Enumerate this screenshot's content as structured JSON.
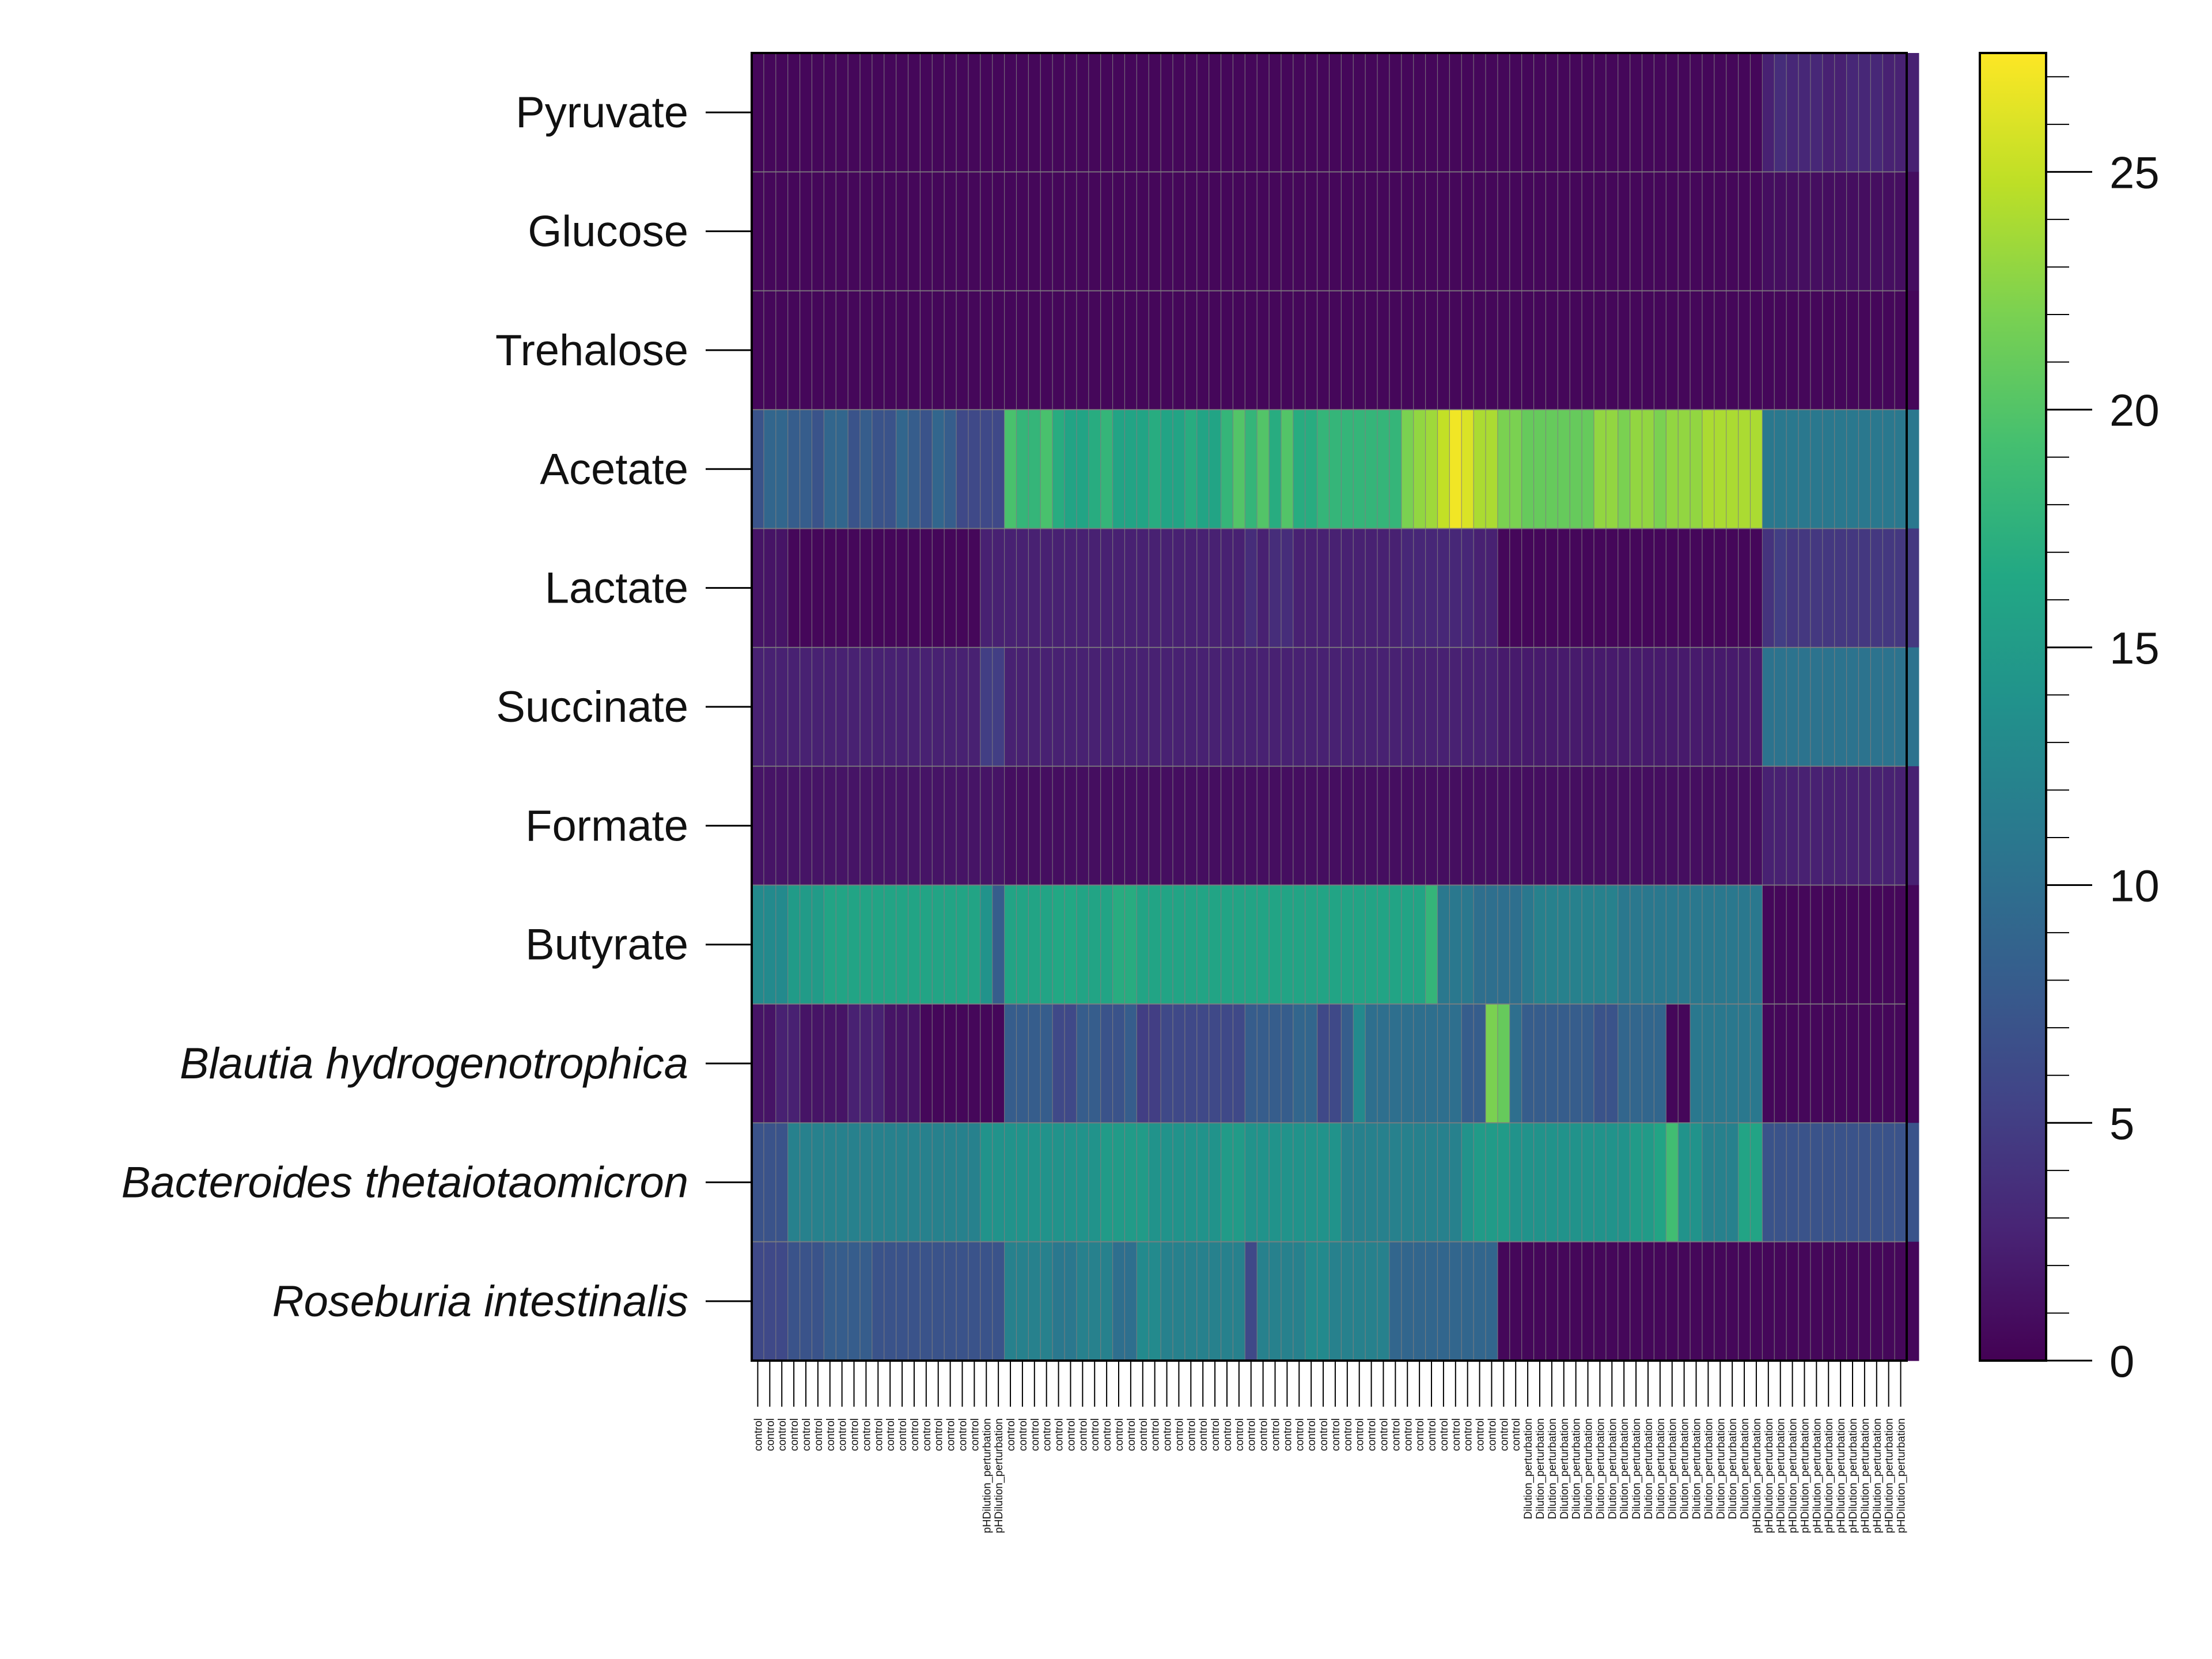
{
  "chart_data": {
    "type": "heatmap",
    "title": "",
    "xlabel": "",
    "ylabel": "",
    "colormap": "viridis",
    "grid": true,
    "grid_color": "#808080",
    "legend": "colorbar-right",
    "colorbar": {
      "range": [
        0,
        27.5
      ],
      "ticks": [
        0,
        5,
        10,
        15,
        20,
        25
      ],
      "tick_labels": [
        "0",
        "5",
        "10",
        "15",
        "20",
        "25"
      ]
    },
    "rows": [
      {
        "label": "Pyruvate",
        "italic": false
      },
      {
        "label": "Glucose",
        "italic": false
      },
      {
        "label": "Trehalose",
        "italic": false
      },
      {
        "label": "Acetate",
        "italic": false
      },
      {
        "label": "Lactate",
        "italic": false
      },
      {
        "label": "Succinate",
        "italic": false
      },
      {
        "label": "Formate",
        "italic": false
      },
      {
        "label": "Butyrate",
        "italic": false
      },
      {
        "label": "Blautia hydrogenotrophica",
        "italic": true
      },
      {
        "label": "Bacteroides thetaiotaomicron",
        "italic": true
      },
      {
        "label": "Roseburia intestinalis",
        "italic": true
      }
    ],
    "columns": [
      "control",
      "control",
      "control",
      "control",
      "control",
      "control",
      "control",
      "control",
      "control",
      "control",
      "control",
      "control",
      "control",
      "control",
      "control",
      "control",
      "control",
      "control",
      "control",
      "pHDilution_perturbation",
      "pHDilution_perturbation",
      "control",
      "control",
      "control",
      "control",
      "control",
      "control",
      "control",
      "control",
      "control",
      "control",
      "control",
      "control",
      "control",
      "control",
      "control",
      "control",
      "control",
      "control",
      "control",
      "control",
      "control",
      "control",
      "control",
      "control",
      "control",
      "control",
      "control",
      "control",
      "control",
      "control",
      "control",
      "control",
      "control",
      "control",
      "control",
      "control",
      "control",
      "control",
      "control",
      "control",
      "control",
      "control",
      "control",
      "Dilution_perturbation",
      "Dilution_perturbation",
      "Dilution_perturbation",
      "Dilution_perturbation",
      "Dilution_perturbation",
      "Dilution_perturbation",
      "Dilution_perturbation",
      "Dilution_perturbation",
      "Dilution_perturbation",
      "Dilution_perturbation",
      "Dilution_perturbation",
      "Dilution_perturbation",
      "Dilution_perturbation",
      "Dilution_perturbation",
      "Dilution_perturbation",
      "Dilution_perturbation",
      "Dilution_perturbation",
      "Dilution_perturbation",
      "Dilution_perturbation",
      "pHDilution_perturbation",
      "pHDilution_perturbation",
      "pHDilution_perturbation",
      "pHDilution_perturbation",
      "pHDilution_perturbation",
      "pHDilution_perturbation",
      "pHDilution_perturbation",
      "pHDilution_perturbation",
      "pHDilution_perturbation",
      "pHDilution_perturbation",
      "pHDilution_perturbation",
      "pHDilution_perturbation",
      "pHDilution_perturbation"
    ],
    "values": [
      [
        0.5,
        0.5,
        0.5,
        0.5,
        0.5,
        0.5,
        0.5,
        0.5,
        0.5,
        0.5,
        0.5,
        0.5,
        0.5,
        0.5,
        0.5,
        0.5,
        0.5,
        0.5,
        0.5,
        0.5,
        0.5,
        0.5,
        0.5,
        0.5,
        0.5,
        0.5,
        0.5,
        0.5,
        0.5,
        0.5,
        0.5,
        0.5,
        0.5,
        0.5,
        0.5,
        0.5,
        0.5,
        0.5,
        0.5,
        0.5,
        0.5,
        0.5,
        0.5,
        0.5,
        0.5,
        0.5,
        0.5,
        0.5,
        0.5,
        0.5,
        0.5,
        0.5,
        0.5,
        0.5,
        0.5,
        0.5,
        0.5,
        0.5,
        0.5,
        0.5,
        0.5,
        0.5,
        0.5,
        0.5,
        0.5,
        0.5,
        0.5,
        0.5,
        0.5,
        0.5,
        0.5,
        0.5,
        0.5,
        0.5,
        0.5,
        0.5,
        0.5,
        0.5,
        0.5,
        0.5,
        0.5,
        0.5,
        0.5,
        0.5,
        2.5,
        3.5,
        3.0,
        3.0,
        3.0,
        2.5,
        2.5,
        3.0,
        3.0,
        3.0,
        2.5,
        2.5,
        2.5
      ],
      [
        0.5,
        0.5,
        0.5,
        0.5,
        0.5,
        0.5,
        0.5,
        0.5,
        0.5,
        0.5,
        0.5,
        0.5,
        0.5,
        0.5,
        0.5,
        0.5,
        0.5,
        0.5,
        0.5,
        0.5,
        0.5,
        0.5,
        0.5,
        0.5,
        0.5,
        0.5,
        0.5,
        0.5,
        0.5,
        0.5,
        0.5,
        0.5,
        0.5,
        0.5,
        0.5,
        0.5,
        0.5,
        0.5,
        0.5,
        0.5,
        0.5,
        0.5,
        0.5,
        0.5,
        0.5,
        0.5,
        0.5,
        0.5,
        0.5,
        0.5,
        0.5,
        0.5,
        0.5,
        0.5,
        0.5,
        0.5,
        0.5,
        0.5,
        0.5,
        0.5,
        0.5,
        0.5,
        0.5,
        0.5,
        0.5,
        0.5,
        0.5,
        0.5,
        0.5,
        0.5,
        0.5,
        0.5,
        0.5,
        0.5,
        0.5,
        0.5,
        0.5,
        0.5,
        0.5,
        0.5,
        0.5,
        0.5,
        0.5,
        0.5,
        1.0,
        1.0,
        1.0,
        1.0,
        1.0,
        1.0,
        1.0,
        1.0,
        1.0,
        1.0,
        1.0,
        1.0,
        1.0
      ],
      [
        0.5,
        0.5,
        0.5,
        0.5,
        0.5,
        0.5,
        0.5,
        0.5,
        0.5,
        0.5,
        0.5,
        0.5,
        0.5,
        0.5,
        0.5,
        0.5,
        0.5,
        0.5,
        0.5,
        0.5,
        0.5,
        0.5,
        0.5,
        0.5,
        0.5,
        0.5,
        0.5,
        0.5,
        0.5,
        0.5,
        0.5,
        0.5,
        0.5,
        0.5,
        0.5,
        0.5,
        0.5,
        0.5,
        0.5,
        0.5,
        0.5,
        0.5,
        0.5,
        0.5,
        0.5,
        0.5,
        0.5,
        0.5,
        0.5,
        0.5,
        0.5,
        0.5,
        0.5,
        0.5,
        0.5,
        0.5,
        0.5,
        0.5,
        0.5,
        0.5,
        0.5,
        0.5,
        0.5,
        0.5,
        0.5,
        0.5,
        0.5,
        0.5,
        0.5,
        0.5,
        0.5,
        0.5,
        0.5,
        0.5,
        0.5,
        0.5,
        0.5,
        0.5,
        0.5,
        0.5,
        0.5,
        0.5,
        0.5,
        0.5,
        0.5,
        0.5,
        0.5,
        0.5,
        0.5,
        0.5,
        0.5,
        0.5,
        0.5,
        0.5,
        0.5,
        0.5,
        0.5
      ],
      [
        7.0,
        9.0,
        9.0,
        8.0,
        8.0,
        7.0,
        9.0,
        9.0,
        7.0,
        8.0,
        7.0,
        7.0,
        9.0,
        8.0,
        7.0,
        9.0,
        8.0,
        6.0,
        6.0,
        6.0,
        6.0,
        19.5,
        18.0,
        18.0,
        19.5,
        17.0,
        16.0,
        16.0,
        17.0,
        18.0,
        16.0,
        16.0,
        16.0,
        17.0,
        16.0,
        16.0,
        17.0,
        16.0,
        16.0,
        18.0,
        20.0,
        18.0,
        20.0,
        17.0,
        20.0,
        17.0,
        17.0,
        18.0,
        18.0,
        18.0,
        18.0,
        18.0,
        18.0,
        18.0,
        22.0,
        23.0,
        23.5,
        25.0,
        27.0,
        26.0,
        24.0,
        24.0,
        22.0,
        22.0,
        21.0,
        21.0,
        21.0,
        21.0,
        21.0,
        21.0,
        23.0,
        23.0,
        22.0,
        23.0,
        23.0,
        22.0,
        23.0,
        23.0,
        23.0,
        24.0,
        24.0,
        24.0,
        24.0,
        24.0,
        11.0,
        11.0,
        11.0,
        11.0,
        11.0,
        11.0,
        11.0,
        11.0,
        11.0,
        11.0,
        11.0,
        11.0,
        11.0
      ],
      [
        1.5,
        1.5,
        1.5,
        0.5,
        0.5,
        0.5,
        0.5,
        0.5,
        0.5,
        0.5,
        0.5,
        0.5,
        0.5,
        0.5,
        0.5,
        0.5,
        0.5,
        0.5,
        0.5,
        2.5,
        2.5,
        2.5,
        2.5,
        2.5,
        2.5,
        2.5,
        2.5,
        2.5,
        2.5,
        2.5,
        2.5,
        2.5,
        2.5,
        2.5,
        2.5,
        2.5,
        2.5,
        2.5,
        2.5,
        2.5,
        2.5,
        3.5,
        2.5,
        3.5,
        3.5,
        2.5,
        2.5,
        2.5,
        2.5,
        2.5,
        2.5,
        2.5,
        2.5,
        2.5,
        3.0,
        3.0,
        3.0,
        3.0,
        3.0,
        3.0,
        2.5,
        2.5,
        0.5,
        0.5,
        0.5,
        0.5,
        0.5,
        0.5,
        0.5,
        0.5,
        0.5,
        0.5,
        0.5,
        0.5,
        0.5,
        0.5,
        0.5,
        0.5,
        0.5,
        0.5,
        0.5,
        0.5,
        0.5,
        0.5,
        4.0,
        5.0,
        4.5,
        4.5,
        4.5,
        4.5,
        4.5,
        4.5,
        4.5,
        4.5,
        4.5,
        4.5,
        4.5
      ],
      [
        2.5,
        2.5,
        2.5,
        2.5,
        2.5,
        2.5,
        2.5,
        2.5,
        2.5,
        2.5,
        2.5,
        2.5,
        2.5,
        2.5,
        2.5,
        2.5,
        2.5,
        2.5,
        2.5,
        5.0,
        5.0,
        2.5,
        2.5,
        2.5,
        2.5,
        2.5,
        2.5,
        2.5,
        2.5,
        2.5,
        2.5,
        2.5,
        2.5,
        2.5,
        2.5,
        2.5,
        2.5,
        2.5,
        2.5,
        2.5,
        2.5,
        2.5,
        2.5,
        2.5,
        2.5,
        2.5,
        2.5,
        2.5,
        2.5,
        2.5,
        2.5,
        2.5,
        2.5,
        2.5,
        2.5,
        2.5,
        2.5,
        2.5,
        2.5,
        2.5,
        2.5,
        2.5,
        2.0,
        2.0,
        2.0,
        2.0,
        2.0,
        2.0,
        2.0,
        2.0,
        2.0,
        2.0,
        2.0,
        2.0,
        2.0,
        2.0,
        2.0,
        2.0,
        2.0,
        2.0,
        2.0,
        2.0,
        2.0,
        2.0,
        10.5,
        10.5,
        10.5,
        10.5,
        10.5,
        10.5,
        10.5,
        10.5,
        10.5,
        10.5,
        10.5,
        10.5,
        10.5
      ],
      [
        1.5,
        1.5,
        1.5,
        1.5,
        1.5,
        1.5,
        1.5,
        1.5,
        1.5,
        1.5,
        1.5,
        1.5,
        1.5,
        1.5,
        1.5,
        1.5,
        1.5,
        1.5,
        1.5,
        1.5,
        1.5,
        1.0,
        1.0,
        1.0,
        1.0,
        1.0,
        1.0,
        1.0,
        1.0,
        1.0,
        1.0,
        1.0,
        1.0,
        1.0,
        1.0,
        1.0,
        1.0,
        1.0,
        1.0,
        1.0,
        1.0,
        1.0,
        1.0,
        1.0,
        1.0,
        1.0,
        1.0,
        1.0,
        1.0,
        1.0,
        1.0,
        1.0,
        1.0,
        1.0,
        1.0,
        1.0,
        1.0,
        1.0,
        1.0,
        1.0,
        1.0,
        1.0,
        1.0,
        1.0,
        1.0,
        1.0,
        1.0,
        1.0,
        1.0,
        1.0,
        1.0,
        1.0,
        1.0,
        1.0,
        1.0,
        1.0,
        1.0,
        1.0,
        1.0,
        1.0,
        1.0,
        1.0,
        1.0,
        1.0,
        2.5,
        2.5,
        2.5,
        2.5,
        2.5,
        2.5,
        2.5,
        2.5,
        2.5,
        2.5,
        2.5,
        2.5,
        2.5
      ],
      [
        13.0,
        13.0,
        13.0,
        15.0,
        15.0,
        15.0,
        16.0,
        16.0,
        16.0,
        16.0,
        16.0,
        16.0,
        16.0,
        16.0,
        16.0,
        16.0,
        16.0,
        16.0,
        16.0,
        14.0,
        8.0,
        16.0,
        16.0,
        16.0,
        16.0,
        16.5,
        16.5,
        16.0,
        16.0,
        16.0,
        17.0,
        17.0,
        16.0,
        16.0,
        16.0,
        16.0,
        16.0,
        16.0,
        16.0,
        16.0,
        16.0,
        16.0,
        16.0,
        16.0,
        16.0,
        16.0,
        16.0,
        16.0,
        16.0,
        16.0,
        16.0,
        16.0,
        16.0,
        16.0,
        16.0,
        16.0,
        18.0,
        11.0,
        11.0,
        11.0,
        10.0,
        10.0,
        10.0,
        10.0,
        11.0,
        12.0,
        12.0,
        12.0,
        12.0,
        12.0,
        12.0,
        12.0,
        11.0,
        11.0,
        11.0,
        11.0,
        11.0,
        11.0,
        11.0,
        11.0,
        11.0,
        11.0,
        11.0,
        11.0,
        0.5,
        0.5,
        0.5,
        0.5,
        0.5,
        0.5,
        0.5,
        0.5,
        0.5,
        0.5,
        0.5,
        0.5,
        0.5
      ],
      [
        1.5,
        1.5,
        2.5,
        2.5,
        1.5,
        1.5,
        1.5,
        1.5,
        2.5,
        2.5,
        2.5,
        1.5,
        1.5,
        1.5,
        0.5,
        0.5,
        0.5,
        0.5,
        0.5,
        0.5,
        0.5,
        8.0,
        8.0,
        8.0,
        8.0,
        6.0,
        6.0,
        8.0,
        8.0,
        7.0,
        7.0,
        8.0,
        5.0,
        5.0,
        6.0,
        6.0,
        6.0,
        6.0,
        6.0,
        6.0,
        6.0,
        8.0,
        8.0,
        8.0,
        8.0,
        9.0,
        9.0,
        6.0,
        6.0,
        8.0,
        13.0,
        10.0,
        10.0,
        10.0,
        10.0,
        10.0,
        10.0,
        10.0,
        10.0,
        8.0,
        8.0,
        22.0,
        21.0,
        10.0,
        8.0,
        8.0,
        8.0,
        8.0,
        8.0,
        8.0,
        7.0,
        7.0,
        9.0,
        9.0,
        9.0,
        9.0,
        0.5,
        0.5,
        11.0,
        11.0,
        11.0,
        11.0,
        11.0,
        11.0,
        0.5,
        0.5,
        0.5,
        0.5,
        0.5,
        0.5,
        0.5,
        0.5,
        0.5,
        0.5,
        0.5,
        0.5,
        0.5
      ],
      [
        7.0,
        7.0,
        7.0,
        12.0,
        12.0,
        12.0,
        12.0,
        12.0,
        12.0,
        12.0,
        12.0,
        12.0,
        12.0,
        12.0,
        12.0,
        12.0,
        12.0,
        12.0,
        12.0,
        14.0,
        14.0,
        14.0,
        14.0,
        14.0,
        14.0,
        14.0,
        14.0,
        14.0,
        14.0,
        15.0,
        15.0,
        15.0,
        15.0,
        14.0,
        14.0,
        14.0,
        14.0,
        14.0,
        14.0,
        15.0,
        15.0,
        14.0,
        14.0,
        14.0,
        14.0,
        14.0,
        14.0,
        14.0,
        14.0,
        12.0,
        12.0,
        12.0,
        12.0,
        12.0,
        12.0,
        12.0,
        12.0,
        12.0,
        12.0,
        14.0,
        15.0,
        15.0,
        15.0,
        14.0,
        14.0,
        14.0,
        14.0,
        14.0,
        14.0,
        14.0,
        14.0,
        14.0,
        14.0,
        15.0,
        15.0,
        16.0,
        19.0,
        14.0,
        14.0,
        12.0,
        12.0,
        12.0,
        16.0,
        16.0,
        7.0,
        7.0,
        7.0,
        7.0,
        7.0,
        7.0,
        7.0,
        7.0,
        7.0,
        7.0,
        7.0,
        7.0,
        7.0
      ],
      [
        6.0,
        6.0,
        6.0,
        7.0,
        7.0,
        7.0,
        8.0,
        8.0,
        8.0,
        8.0,
        7.0,
        7.0,
        7.0,
        7.0,
        7.0,
        7.0,
        7.0,
        7.0,
        7.0,
        7.0,
        7.0,
        12.0,
        12.0,
        12.0,
        12.0,
        11.0,
        11.0,
        12.0,
        12.0,
        12.0,
        10.0,
        10.0,
        13.0,
        13.0,
        12.0,
        12.0,
        12.0,
        12.0,
        12.0,
        12.0,
        12.0,
        6.0,
        12.0,
        12.0,
        12.0,
        12.0,
        13.0,
        13.0,
        12.0,
        12.0,
        12.0,
        12.0,
        12.0,
        9.0,
        9.0,
        9.0,
        9.0,
        9.0,
        9.0,
        9.0,
        9.0,
        9.0,
        0.5,
        0.5,
        0.5,
        0.5,
        0.5,
        0.5,
        0.5,
        0.5,
        0.5,
        0.5,
        0.5,
        0.5,
        0.5,
        0.5,
        0.5,
        0.5,
        0.5,
        0.5,
        0.5,
        0.5,
        0.5,
        0.5,
        0.5,
        0.5,
        0.5,
        0.5,
        0.5,
        0.5,
        0.5,
        0.5,
        0.5,
        0.5,
        0.5,
        0.5,
        0.5
      ]
    ]
  }
}
